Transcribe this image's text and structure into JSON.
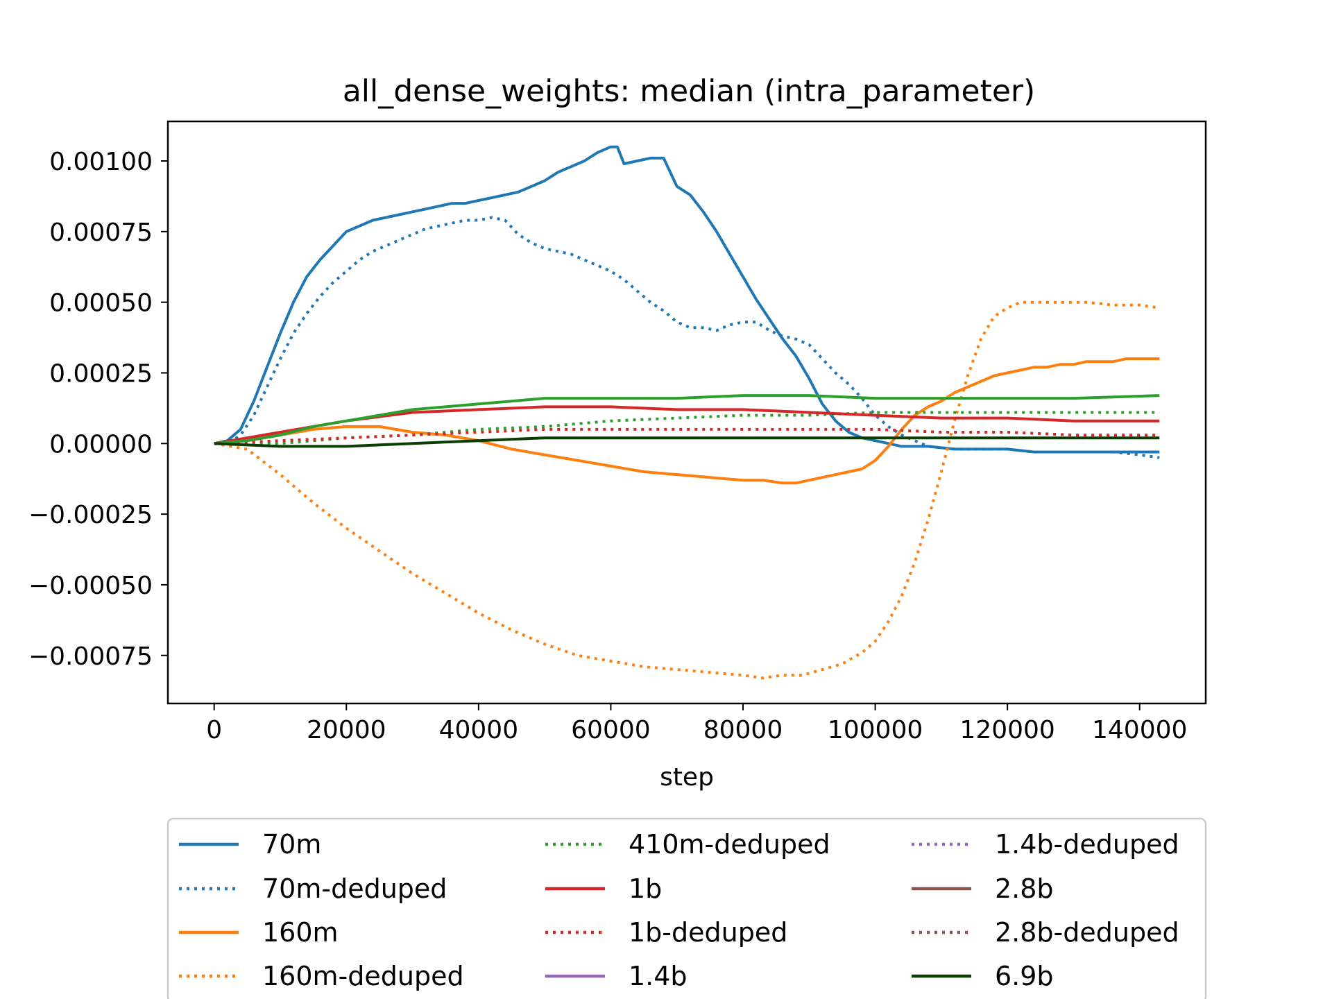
{
  "chart_data": {
    "type": "line",
    "title": "all_dense_weights: median (intra_parameter)",
    "xlabel": "step",
    "ylabel": "",
    "xlim": [
      -7000,
      150000
    ],
    "ylim": [
      -0.00092,
      0.00114
    ],
    "xticks": [
      0,
      20000,
      40000,
      60000,
      80000,
      100000,
      120000,
      140000
    ],
    "xtick_labels": [
      "0",
      "20000",
      "40000",
      "60000",
      "80000",
      "100000",
      "120000",
      "140000"
    ],
    "yticks": [
      0.001,
      0.00075,
      0.0005,
      0.00025,
      0.0,
      -0.00025,
      -0.0005,
      -0.00075
    ],
    "ytick_labels": [
      "0.00100",
      "0.00075",
      "0.00050",
      "0.00025",
      "0.00000",
      "−0.00025",
      "−0.00050",
      "−0.00075"
    ],
    "grid": false,
    "legend_position": "below",
    "series": [
      {
        "name": "70m",
        "color": "#1f77b4",
        "style": "solid",
        "x": [
          0,
          2000,
          4000,
          6000,
          8000,
          10000,
          12000,
          14000,
          16000,
          18000,
          20000,
          22000,
          24000,
          26000,
          28000,
          30000,
          32000,
          34000,
          36000,
          38000,
          40000,
          42000,
          44000,
          46000,
          48000,
          50000,
          52000,
          54000,
          56000,
          58000,
          60000,
          61000,
          62000,
          64000,
          66000,
          68000,
          70000,
          72000,
          74000,
          76000,
          78000,
          80000,
          82000,
          84000,
          86000,
          88000,
          90000,
          92000,
          94000,
          96000,
          98000,
          100000,
          104000,
          108000,
          112000,
          116000,
          120000,
          124000,
          128000,
          132000,
          136000,
          140000,
          143000
        ],
        "y": [
          0,
          1e-05,
          5e-05,
          0.00015,
          0.00027,
          0.00039,
          0.0005,
          0.00059,
          0.00065,
          0.0007,
          0.00075,
          0.00077,
          0.00079,
          0.0008,
          0.00081,
          0.00082,
          0.00083,
          0.00084,
          0.00085,
          0.00085,
          0.00086,
          0.00087,
          0.00088,
          0.00089,
          0.00091,
          0.00093,
          0.00096,
          0.00098,
          0.001,
          0.00103,
          0.00105,
          0.00105,
          0.00099,
          0.001,
          0.00101,
          0.00101,
          0.00091,
          0.00088,
          0.00082,
          0.00075,
          0.00067,
          0.00059,
          0.00051,
          0.00044,
          0.00037,
          0.00031,
          0.00023,
          0.00014,
          8e-05,
          4e-05,
          2e-05,
          1e-05,
          -1e-05,
          -1e-05,
          -2e-05,
          -2e-05,
          -2e-05,
          -3e-05,
          -3e-05,
          -3e-05,
          -3e-05,
          -3e-05,
          -3e-05
        ]
      },
      {
        "name": "70m-deduped",
        "color": "#1f77b4",
        "style": "dotted",
        "x": [
          0,
          2000,
          4000,
          6000,
          8000,
          10000,
          12000,
          14000,
          16000,
          18000,
          20000,
          22000,
          24000,
          26000,
          28000,
          30000,
          32000,
          34000,
          36000,
          38000,
          40000,
          42000,
          44000,
          46000,
          48000,
          50000,
          52000,
          54000,
          56000,
          58000,
          60000,
          62000,
          64000,
          66000,
          68000,
          70000,
          72000,
          74000,
          76000,
          78000,
          80000,
          82000,
          84000,
          86000,
          88000,
          90000,
          92000,
          94000,
          96000,
          98000,
          100000,
          102000,
          104000,
          106000,
          108000,
          112000,
          116000,
          120000,
          124000,
          128000,
          132000,
          136000,
          140000,
          143000
        ],
        "y": [
          0,
          0,
          3e-05,
          0.0001,
          0.0002,
          0.0003,
          0.00039,
          0.00046,
          0.00052,
          0.00057,
          0.00061,
          0.00065,
          0.00068,
          0.0007,
          0.00072,
          0.00074,
          0.00076,
          0.00077,
          0.00078,
          0.00079,
          0.00079,
          0.0008,
          0.00079,
          0.00074,
          0.00071,
          0.00069,
          0.00068,
          0.00067,
          0.00065,
          0.00063,
          0.00061,
          0.00058,
          0.00054,
          0.0005,
          0.00047,
          0.00043,
          0.00041,
          0.00041,
          0.0004,
          0.00042,
          0.00043,
          0.00043,
          0.0004,
          0.00038,
          0.00037,
          0.00035,
          0.0003,
          0.00025,
          0.00021,
          0.00016,
          0.0001,
          6e-05,
          3e-05,
          1e-05,
          -1e-05,
          -2e-05,
          -2e-05,
          -2e-05,
          -3e-05,
          -3e-05,
          -3e-05,
          -3e-05,
          -4e-05,
          -5e-05
        ]
      },
      {
        "name": "160m",
        "color": "#ff7f0e",
        "style": "solid",
        "x": [
          0,
          5000,
          10000,
          15000,
          20000,
          25000,
          30000,
          35000,
          40000,
          45000,
          50000,
          55000,
          60000,
          65000,
          70000,
          75000,
          80000,
          83000,
          86000,
          88000,
          90000,
          92000,
          94000,
          96000,
          98000,
          100000,
          102000,
          104000,
          106000,
          108000,
          110000,
          112000,
          114000,
          116000,
          118000,
          120000,
          122000,
          124000,
          126000,
          128000,
          130000,
          132000,
          134000,
          136000,
          138000,
          140000,
          143000
        ],
        "y": [
          0,
          1e-05,
          3e-05,
          5e-05,
          6e-05,
          6e-05,
          4e-05,
          3e-05,
          1e-05,
          -2e-05,
          -4e-05,
          -6e-05,
          -8e-05,
          -0.0001,
          -0.00011,
          -0.00012,
          -0.00013,
          -0.00013,
          -0.00014,
          -0.00014,
          -0.00013,
          -0.00012,
          -0.00011,
          -0.0001,
          -9e-05,
          -6e-05,
          -1e-05,
          5e-05,
          0.0001,
          0.00013,
          0.00015,
          0.00018,
          0.0002,
          0.00022,
          0.00024,
          0.00025,
          0.00026,
          0.00027,
          0.00027,
          0.00028,
          0.00028,
          0.00029,
          0.00029,
          0.00029,
          0.0003,
          0.0003,
          0.0003
        ]
      },
      {
        "name": "160m-deduped",
        "color": "#ff7f0e",
        "style": "dotted",
        "x": [
          0,
          5000,
          10000,
          15000,
          20000,
          25000,
          30000,
          35000,
          40000,
          45000,
          50000,
          55000,
          60000,
          65000,
          70000,
          75000,
          80000,
          83000,
          86000,
          89000,
          92000,
          95000,
          98000,
          100000,
          102000,
          104000,
          106000,
          108000,
          110000,
          112000,
          114000,
          116000,
          118000,
          120000,
          122000,
          124000,
          128000,
          132000,
          136000,
          140000,
          143000
        ],
        "y": [
          0,
          -2e-05,
          -0.00011,
          -0.00021,
          -0.0003,
          -0.00038,
          -0.00046,
          -0.00053,
          -0.0006,
          -0.00066,
          -0.00071,
          -0.00075,
          -0.00077,
          -0.00079,
          -0.0008,
          -0.00081,
          -0.00082,
          -0.00083,
          -0.00082,
          -0.00082,
          -0.0008,
          -0.00078,
          -0.00074,
          -0.0007,
          -0.00063,
          -0.00054,
          -0.00042,
          -0.00027,
          -0.0001,
          8e-05,
          0.00024,
          0.00037,
          0.00045,
          0.00048,
          0.0005,
          0.0005,
          0.0005,
          0.0005,
          0.00049,
          0.00049,
          0.00048
        ]
      },
      {
        "name": "410m-deduped",
        "color": "#2ca02c",
        "style": "dotted",
        "x": [
          0,
          10000,
          20000,
          30000,
          40000,
          50000,
          60000,
          70000,
          80000,
          90000,
          100000,
          110000,
          120000,
          130000,
          143000
        ],
        "y": [
          0,
          0,
          2e-05,
          3e-05,
          5e-05,
          6e-05,
          8e-05,
          9e-05,
          0.0001,
          0.0001,
          0.00011,
          0.00011,
          0.00011,
          0.00011,
          0.00011
        ]
      },
      {
        "name": "1b",
        "color": "#d62728",
        "style": "solid",
        "x": [
          0,
          10000,
          20000,
          30000,
          40000,
          50000,
          60000,
          70000,
          80000,
          90000,
          100000,
          110000,
          120000,
          130000,
          143000
        ],
        "y": [
          0,
          4e-05,
          8e-05,
          0.00011,
          0.00012,
          0.00013,
          0.00013,
          0.00012,
          0.00012,
          0.00011,
          0.0001,
          9e-05,
          9e-05,
          8e-05,
          8e-05
        ]
      },
      {
        "name": "1b-deduped",
        "color": "#d62728",
        "style": "dotted",
        "x": [
          0,
          10000,
          20000,
          30000,
          40000,
          50000,
          60000,
          70000,
          80000,
          90000,
          100000,
          110000,
          120000,
          130000,
          143000
        ],
        "y": [
          0,
          1e-05,
          2e-05,
          3e-05,
          4e-05,
          5e-05,
          5e-05,
          5e-05,
          5e-05,
          5e-05,
          5e-05,
          4e-05,
          4e-05,
          3e-05,
          3e-05
        ]
      },
      {
        "name": "1.4b",
        "color": "#9467bd",
        "style": "solid",
        "x": [],
        "y": []
      },
      {
        "name": "1.4b-deduped",
        "color": "#9467bd",
        "style": "dotted",
        "x": [],
        "y": []
      },
      {
        "name": "2.8b",
        "color": "#8c564b",
        "style": "solid",
        "x": [],
        "y": []
      },
      {
        "name": "2.8b-deduped",
        "color": "#8c564b",
        "style": "dotted",
        "x": [],
        "y": []
      },
      {
        "name": "410m",
        "color": "#2ca02c",
        "style": "solid",
        "x": [
          0,
          5000,
          10000,
          15000,
          20000,
          25000,
          30000,
          35000,
          40000,
          45000,
          50000,
          60000,
          70000,
          80000,
          90000,
          100000,
          110000,
          120000,
          130000,
          143000
        ],
        "y": [
          0,
          1e-05,
          3e-05,
          6e-05,
          8e-05,
          0.0001,
          0.00012,
          0.00013,
          0.00014,
          0.00015,
          0.00016,
          0.00016,
          0.00016,
          0.00017,
          0.00017,
          0.00016,
          0.00016,
          0.00016,
          0.00016,
          0.00017
        ]
      },
      {
        "name": "6.9b",
        "color": "#0b3d02",
        "style": "solid",
        "x": [
          0,
          10000,
          20000,
          30000,
          40000,
          50000,
          60000,
          70000,
          80000,
          90000,
          100000,
          110000,
          120000,
          130000,
          143000
        ],
        "y": [
          0,
          -1e-05,
          -1e-05,
          0,
          1e-05,
          2e-05,
          2e-05,
          2e-05,
          2e-05,
          2e-05,
          2e-05,
          2e-05,
          2e-05,
          2e-05,
          2e-05
        ]
      }
    ],
    "legend": [
      {
        "label": "70m",
        "color": "#1f77b4",
        "style": "solid"
      },
      {
        "label": "70m-deduped",
        "color": "#1f77b4",
        "style": "dotted"
      },
      {
        "label": "160m",
        "color": "#ff7f0e",
        "style": "solid"
      },
      {
        "label": "160m-deduped",
        "color": "#ff7f0e",
        "style": "dotted"
      },
      {
        "label": "410m-deduped",
        "color": "#2ca02c",
        "style": "dotted"
      },
      {
        "label": "1b",
        "color": "#d62728",
        "style": "solid"
      },
      {
        "label": "1b-deduped",
        "color": "#d62728",
        "style": "dotted"
      },
      {
        "label": "1.4b",
        "color": "#9467bd",
        "style": "solid"
      },
      {
        "label": "1.4b-deduped",
        "color": "#9467bd",
        "style": "dotted"
      },
      {
        "label": "2.8b",
        "color": "#8c564b",
        "style": "solid"
      },
      {
        "label": "2.8b-deduped",
        "color": "#8c564b",
        "style": "dotted"
      },
      {
        "label": "6.9b",
        "color": "#0b3d02",
        "style": "solid"
      }
    ]
  }
}
